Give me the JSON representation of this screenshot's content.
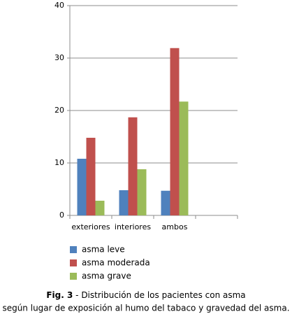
{
  "chart_data": {
    "type": "bar",
    "categories": [
      "exteriores",
      "interiores",
      "ambos",
      null
    ],
    "series": [
      {
        "name": "asma leve",
        "color": "#4f81bd",
        "values": [
          10.8,
          4.8,
          4.7,
          null
        ]
      },
      {
        "name": "asma moderada",
        "color": "#c0504d",
        "values": [
          14.8,
          18.7,
          31.9,
          null
        ]
      },
      {
        "name": "asma grave",
        "color": "#9bbb59",
        "values": [
          2.8,
          8.8,
          21.7,
          null
        ]
      }
    ],
    "ylim": [
      0,
      40
    ],
    "yticks": [
      0,
      10,
      20,
      30,
      40
    ],
    "grid": true,
    "caption_label": "Fig. 3",
    "caption_lines": [
      "- Distribución de los pacientes con asma",
      "según lugar de exposición al humo del tabaco y gravedad del asma."
    ]
  }
}
